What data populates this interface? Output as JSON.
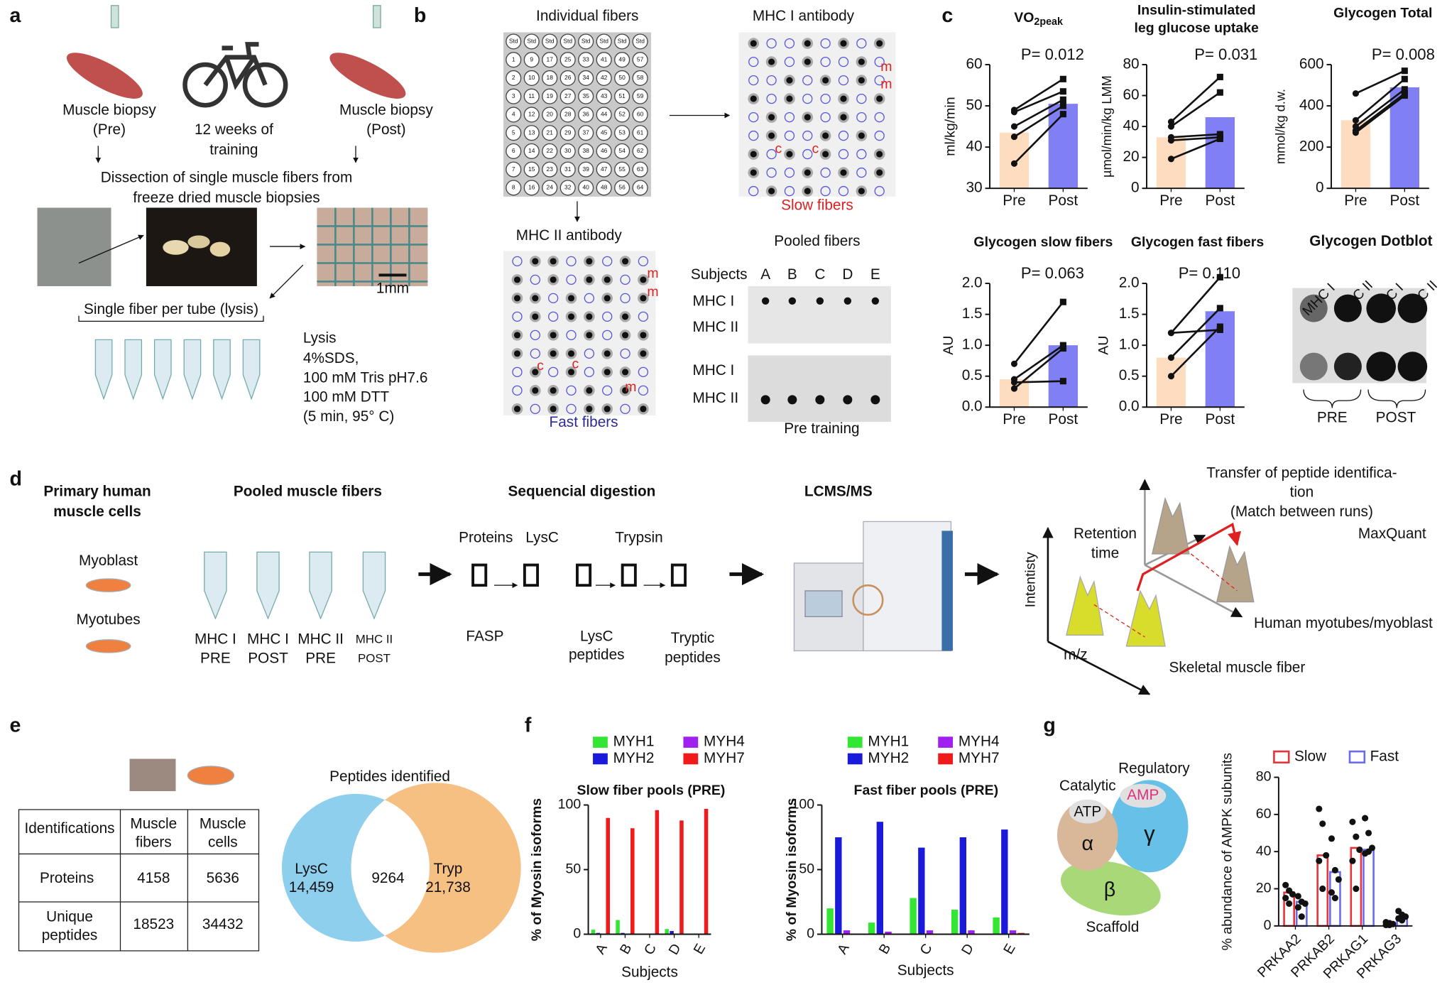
{
  "panel_labels": [
    "a",
    "b",
    "c",
    "d",
    "e",
    "f",
    "g"
  ],
  "a": {
    "pre": [
      "Muscle biopsy",
      "(Pre)"
    ],
    "training": [
      "12 weeks of",
      "training"
    ],
    "post": [
      "Muscle biopsy",
      "(Post)"
    ],
    "dissection": [
      "Dissection of single muscle fibers from",
      "freeze dried muscle biopsies"
    ],
    "scale": "1mm",
    "tubes": "Single fiber per tube (lysis)",
    "lysis": [
      "Lysis",
      "4%SDS,",
      "100 mM Tris pH7.6",
      "100 mM DTT",
      "(5 min, 95° C)"
    ]
  },
  "b": {
    "individual": "Individual fibers",
    "mhc1_ab": "MHC I antibody",
    "mhc2_ab": "MHC II antibody",
    "slow": "Slow fibers",
    "fast": "Fast fibers",
    "pooled": "Pooled fibers",
    "subjects_label": "Subjects",
    "subjects": [
      "A",
      "B",
      "C",
      "D",
      "E"
    ],
    "rows": [
      "MHC I",
      "MHC II"
    ],
    "pre_training": "Pre training",
    "marks": [
      "m",
      "c"
    ],
    "plate": {
      "std": "Std",
      "wells": [
        [
          1,
          9,
          17,
          25,
          33,
          41,
          49,
          57
        ],
        [
          2,
          10,
          18,
          26,
          34,
          42,
          50,
          58
        ],
        [
          3,
          11,
          19,
          27,
          35,
          43,
          51,
          59
        ],
        [
          4,
          12,
          20,
          28,
          36,
          44,
          52,
          60
        ],
        [
          5,
          13,
          21,
          29,
          37,
          45,
          53,
          61
        ],
        [
          6,
          14,
          22,
          30,
          38,
          46,
          54,
          62
        ],
        [
          7,
          15,
          23,
          31,
          39,
          47,
          55,
          63
        ],
        [
          8,
          16,
          24,
          32,
          40,
          48,
          56,
          64
        ]
      ]
    }
  },
  "dotblot": {
    "title": "Glycogen Dotblot",
    "lanes": [
      "MHC I",
      "MHC II",
      "MHC I",
      "MHC II"
    ],
    "groups": [
      "PRE",
      "POST"
    ]
  },
  "d": {
    "primary": [
      "Primary human",
      "muscle cells"
    ],
    "myoblast": "Myoblast",
    "myotubes": "Myotubes",
    "pooled": "Pooled muscle fibers",
    "tubes": [
      [
        "MHC I",
        "PRE"
      ],
      [
        "MHC I",
        "POST"
      ],
      [
        "MHC II",
        "PRE"
      ],
      [
        "MHC II",
        "POST"
      ]
    ],
    "digestion": "Sequencial digestion",
    "proteins": "Proteins",
    "lysc": "LysC",
    "trypsin": "Trypsin",
    "fasp": "FASP",
    "lysc_peptides": [
      "LysC",
      "peptides"
    ],
    "tryptic": [
      "Tryptic",
      "peptides"
    ],
    "lcms": "LCMS/MS",
    "transfer": [
      "Transfer of peptide identifica-",
      "tion",
      "(Match between runs)"
    ],
    "maxquant": "MaxQuant",
    "retention": [
      "Retention",
      "time"
    ],
    "intensity": "Intentisty",
    "mz": "m/z",
    "human": "Human myotubes/myoblast",
    "skeletal": "Skeletal muscle fiber"
  },
  "e": {
    "table": {
      "header": [
        "Identifications",
        [
          "Muscle",
          "fibers"
        ],
        [
          "Muscle",
          "cells"
        ]
      ],
      "rows": [
        [
          "Proteins",
          4158,
          5636
        ],
        [
          [
            "Unique",
            "peptides"
          ],
          18523,
          34432
        ]
      ]
    },
    "venn": {
      "title": "Peptides identified",
      "left": "LysC",
      "left_value": "14,459",
      "overlap": 9264,
      "right": "Tryp",
      "right_value": "21,738"
    }
  },
  "g": {
    "catalytic": "Catalytic",
    "regulatory": "Regulatory",
    "atp": "ATP",
    "amp": "AMP",
    "alpha": "α",
    "gamma": "γ",
    "beta": "β",
    "scaffold": "Scaffold"
  },
  "chart_data": [
    {
      "type": "bar",
      "title": "VO",
      "title_sub": "2peak",
      "p_value": "P= 0.012",
      "ylabel": "ml/kg/min",
      "categories": [
        "Pre",
        "Post"
      ],
      "values": [
        43.5,
        50.5
      ],
      "colors": [
        "#fddcc0",
        "#8080f4"
      ],
      "paired": [
        [
          49,
          56.5
        ],
        [
          48.5,
          53.5
        ],
        [
          45,
          51.5
        ],
        [
          42.5,
          50
        ],
        [
          36,
          48
        ]
      ],
      "ylim": [
        30,
        60
      ],
      "yticks": [
        30,
        40,
        50,
        60
      ]
    },
    {
      "type": "bar",
      "title": [
        "Insulin-stimulated",
        "leg glucose uptake"
      ],
      "p_value": "P= 0.031",
      "ylabel": "µmol/min/kg LMM",
      "categories": [
        "Pre",
        "Post"
      ],
      "values": [
        33,
        46
      ],
      "colors": [
        "#fddcc0",
        "#8080f4"
      ],
      "paired": [
        [
          43,
          72
        ],
        [
          40,
          62
        ],
        [
          33,
          35
        ],
        [
          31,
          33
        ],
        [
          19,
          32
        ]
      ],
      "ylim": [
        0,
        80
      ],
      "yticks": [
        0,
        20,
        40,
        60,
        80
      ]
    },
    {
      "type": "bar",
      "title": "Glycogen Total",
      "p_value": "P= 0.008",
      "ylabel": "mmol/kg d.w.",
      "categories": [
        "Pre",
        "Post"
      ],
      "values": [
        330,
        490
      ],
      "colors": [
        "#fddcc0",
        "#8080f4"
      ],
      "paired": [
        [
          460,
          570
        ],
        [
          330,
          530
        ],
        [
          300,
          480
        ],
        [
          280,
          460
        ],
        [
          270,
          450
        ]
      ],
      "ylim": [
        0,
        600
      ],
      "yticks": [
        0,
        200,
        400,
        600
      ]
    },
    {
      "type": "bar",
      "title": "Glycogen slow fibers",
      "p_value": "P= 0.063",
      "ylabel": "AU",
      "categories": [
        "Pre",
        "Post"
      ],
      "values": [
        0.45,
        1.0
      ],
      "colors": [
        "#fddcc0",
        "#8080f4"
      ],
      "paired": [
        [
          0.7,
          1.7
        ],
        [
          0.45,
          1.0
        ],
        [
          0.4,
          0.42
        ],
        [
          0.3,
          0.95
        ]
      ],
      "ylim": [
        0,
        2
      ],
      "yticks": [
        {
          "value": 0,
          "label": "0.0"
        },
        0.5,
        {
          "value": 1,
          "label": "1.0"
        },
        1.5,
        {
          "value": 2,
          "label": "2.0"
        }
      ]
    },
    {
      "type": "bar",
      "title": "Glycogen fast fibers",
      "p_value": "P= 0.110",
      "ylabel": "AU",
      "categories": [
        "Pre",
        "Post"
      ],
      "values": [
        0.8,
        1.55
      ],
      "colors": [
        "#fddcc0",
        "#8080f4"
      ],
      "paired": [
        [
          1.2,
          2.1
        ],
        [
          1.2,
          1.25
        ],
        [
          0.8,
          1.6
        ],
        [
          0.5,
          1.3
        ]
      ],
      "ylim": [
        0,
        2
      ],
      "yticks": [
        {
          "value": 0,
          "label": "0.0"
        },
        0.5,
        {
          "value": 1,
          "label": "1.0"
        },
        1.5,
        {
          "value": 2,
          "label": "2.0"
        }
      ]
    },
    {
      "type": "bar",
      "title": "Slow fiber pools (PRE)",
      "ylabel": "% of Myosin isoforms",
      "xlabel": "Subjects",
      "categories": [
        "A",
        "B",
        "C",
        "D",
        "E"
      ],
      "legend": "top",
      "series": [
        {
          "name": "MYH1",
          "color": "#33e633",
          "values": [
            3.5,
            11,
            0.3,
            4,
            0.3
          ]
        },
        {
          "name": "MYH2",
          "color": "#1a1adb",
          "values": [
            1,
            1,
            0.2,
            2.5,
            0.2
          ]
        },
        {
          "name": "MYH4",
          "color": "#a020f0",
          "values": [
            0.3,
            0.3,
            0.2,
            0.2,
            0.2
          ]
        },
        {
          "name": "MYH7",
          "color": "#f01a1a",
          "values": [
            90,
            82,
            96,
            88,
            97
          ]
        }
      ],
      "ylim": [
        0,
        100
      ],
      "yticks": [
        0,
        50,
        100
      ]
    },
    {
      "type": "bar",
      "title": "Fast fiber pools (PRE)",
      "ylabel": "% of Myosin isoforms",
      "xlabel": "Subjects",
      "categories": [
        "A",
        "B",
        "C",
        "D",
        "E"
      ],
      "legend": "top",
      "series": [
        {
          "name": "MYH1",
          "color": "#33e633",
          "values": [
            20,
            9,
            28,
            19,
            13
          ]
        },
        {
          "name": "MYH2",
          "color": "#1a1adb",
          "values": [
            75,
            87,
            67,
            75,
            81
          ]
        },
        {
          "name": "MYH4",
          "color": "#a020f0",
          "values": [
            3,
            2,
            3,
            3,
            3
          ]
        },
        {
          "name": "MYH7",
          "color": "#f01a1a",
          "values": [
            0.5,
            0.3,
            0.3,
            0.3,
            1
          ]
        }
      ],
      "ylim": [
        0,
        100
      ],
      "yticks": [
        0,
        50,
        100
      ]
    },
    {
      "type": "bar",
      "ylabel": "% abundance of AMPK subunits",
      "categories": [
        "PRKAA2",
        "PRKAB2",
        "PRKAG1",
        "PRKAG3"
      ],
      "legend": "top",
      "hollow": true,
      "series": [
        {
          "name": "Slow",
          "color": "#e8333a",
          "values": [
            18,
            38,
            42,
            1
          ],
          "points": [
            [
              22,
              19,
              17,
              15,
              12
            ],
            [
              63,
              55,
              38,
              35,
              20
            ],
            [
              56,
              48,
              41,
              35,
              20
            ],
            [
              2,
              1.5,
              1,
              0.5,
              0.5
            ]
          ]
        },
        {
          "name": "Fast",
          "color": "#6b6bef",
          "values": [
            13,
            29,
            41,
            5
          ],
          "points": [
            [
              16,
              13,
              12,
              10,
              5
            ],
            [
              47,
              30,
              25,
              18,
              15
            ],
            [
              58,
              50,
              42,
              39,
              40
            ],
            [
              8,
              6,
              5,
              4,
              3
            ]
          ]
        }
      ],
      "ylim": [
        0,
        80
      ],
      "yticks": [
        0,
        20,
        40,
        60,
        80
      ]
    }
  ]
}
